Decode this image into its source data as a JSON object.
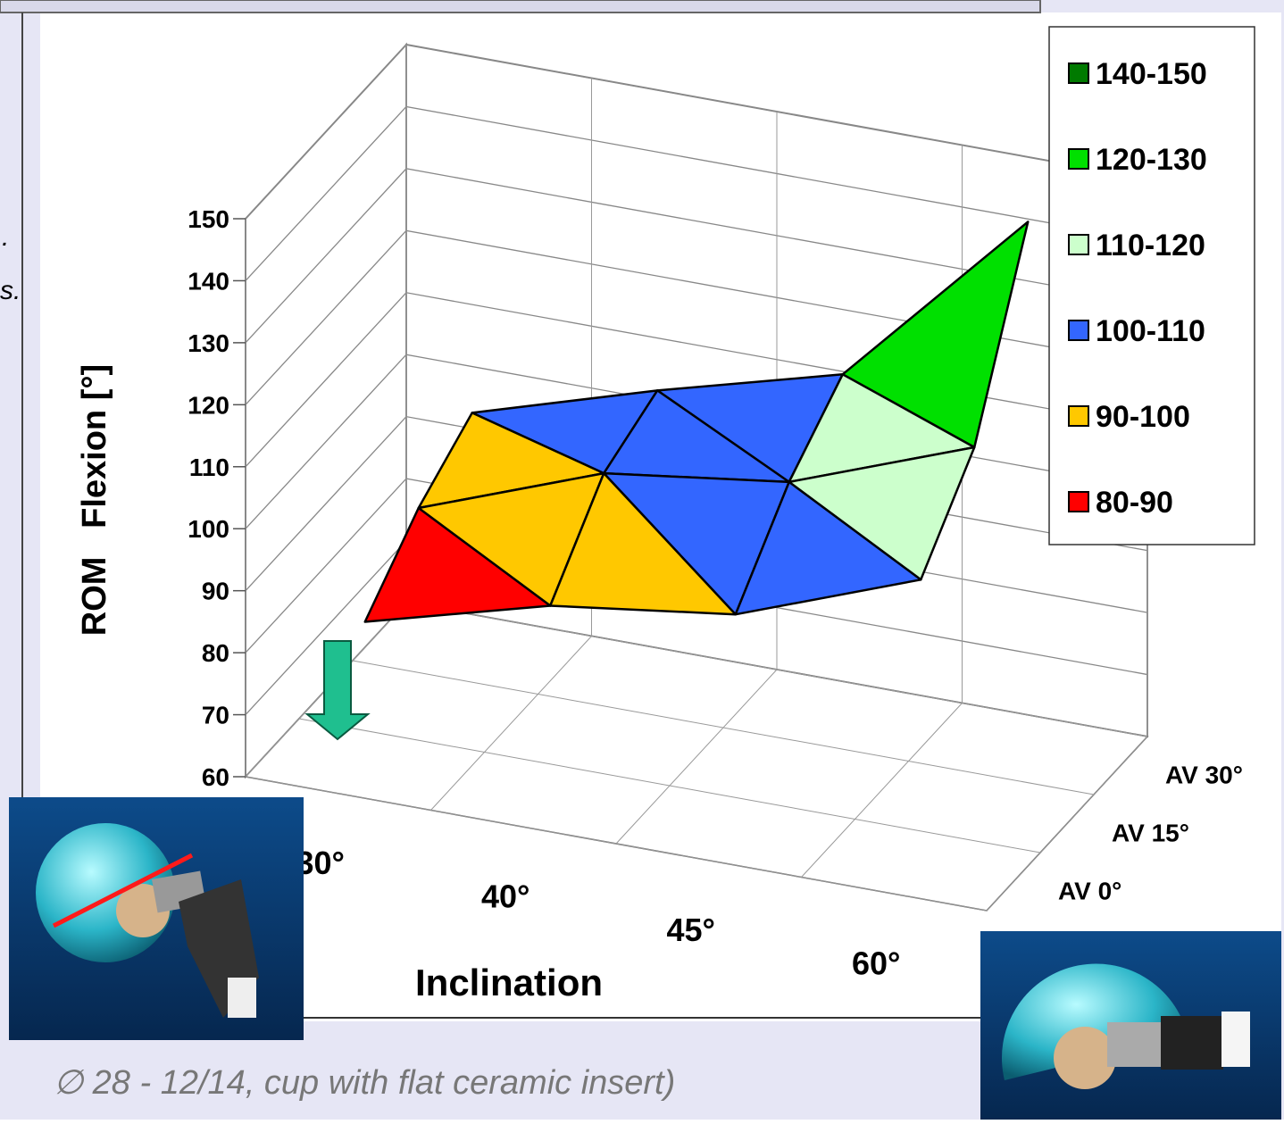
{
  "chart_data": {
    "type": "surface",
    "y_label": "ROM   Flexion [°]",
    "x_label": "Inclination",
    "categories": [
      "30°",
      "40°",
      "45°",
      "60°"
    ],
    "series": [
      {
        "name": "AV 0°",
        "values": [
          83,
          91,
          95,
          106
        ]
      },
      {
        "name": "AV 15°",
        "values": [
          92,
          103,
          107,
          118
        ]
      },
      {
        "name": "AV 30°",
        "values": [
          98,
          107,
          115,
          145
        ]
      }
    ],
    "ylim": [
      60,
      150
    ],
    "yticks": [
      60,
      70,
      80,
      90,
      100,
      110,
      120,
      130,
      140,
      150
    ],
    "grid": true,
    "legend": [
      {
        "label": "140-150",
        "color": "#007a00",
        "range": [
          140,
          150
        ]
      },
      {
        "label": "120-130",
        "color": "#00e000",
        "range": [
          120,
          130
        ]
      },
      {
        "label": "110-120",
        "color": "#ccffcc",
        "range": [
          110,
          120
        ]
      },
      {
        "label": "100-110",
        "color": "#3366ff",
        "range": [
          100,
          110
        ]
      },
      {
        "label": "90-100",
        "color": "#ffc800",
        "range": [
          90,
          100
        ]
      },
      {
        "label": "80-90",
        "color": "#ff0000",
        "range": [
          80,
          90
        ]
      }
    ],
    "legend_position": "upper right"
  },
  "slide": {
    "fragments": [
      ".",
      "s."
    ],
    "caption": "∅ 28 - 12/14, cup with flat ceramic insert)"
  }
}
